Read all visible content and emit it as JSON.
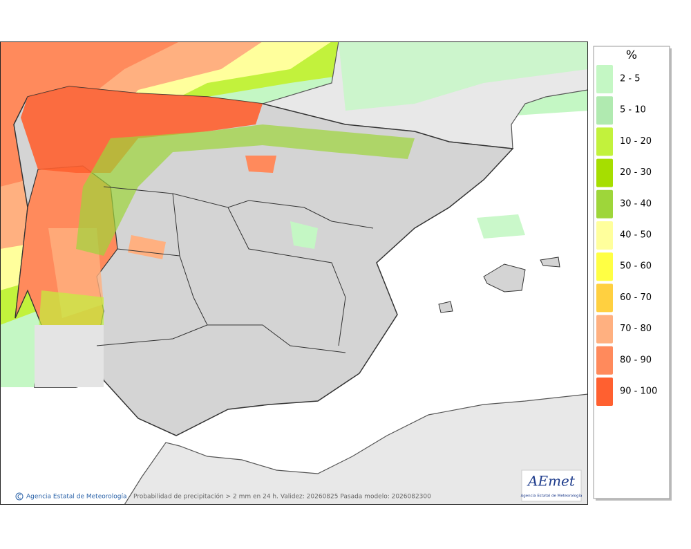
{
  "legend": {
    "title": "%",
    "items": [
      {
        "label": "2 - 5",
        "color": "#c4f7c4"
      },
      {
        "label": "5 - 10",
        "color": "#b0eab0"
      },
      {
        "label": "10 - 20",
        "color": "#c2f23c"
      },
      {
        "label": "20 - 30",
        "color": "#a6de00"
      },
      {
        "label": "30 - 40",
        "color": "#9ed63a"
      },
      {
        "label": "40 - 50",
        "color": "#ffff9c"
      },
      {
        "label": "50 - 60",
        "color": "#ffff44"
      },
      {
        "label": "60 - 70",
        "color": "#ffd040"
      },
      {
        "label": "70 - 80",
        "color": "#ffb080"
      },
      {
        "label": "80 - 90",
        "color": "#ff8a5c"
      },
      {
        "label": "90 - 100",
        "color": "#ff6030"
      }
    ]
  },
  "footer": {
    "credit": "Agencia Estatal de Meteorología",
    "caption": "Probabilidad de precipitación > 2 mm en 24 h. Validez: 20260825 Pasada modelo: 2026082300"
  },
  "logo": {
    "name": "AEmet",
    "subtitle": "Agencia Estatal de Meteorología"
  }
}
